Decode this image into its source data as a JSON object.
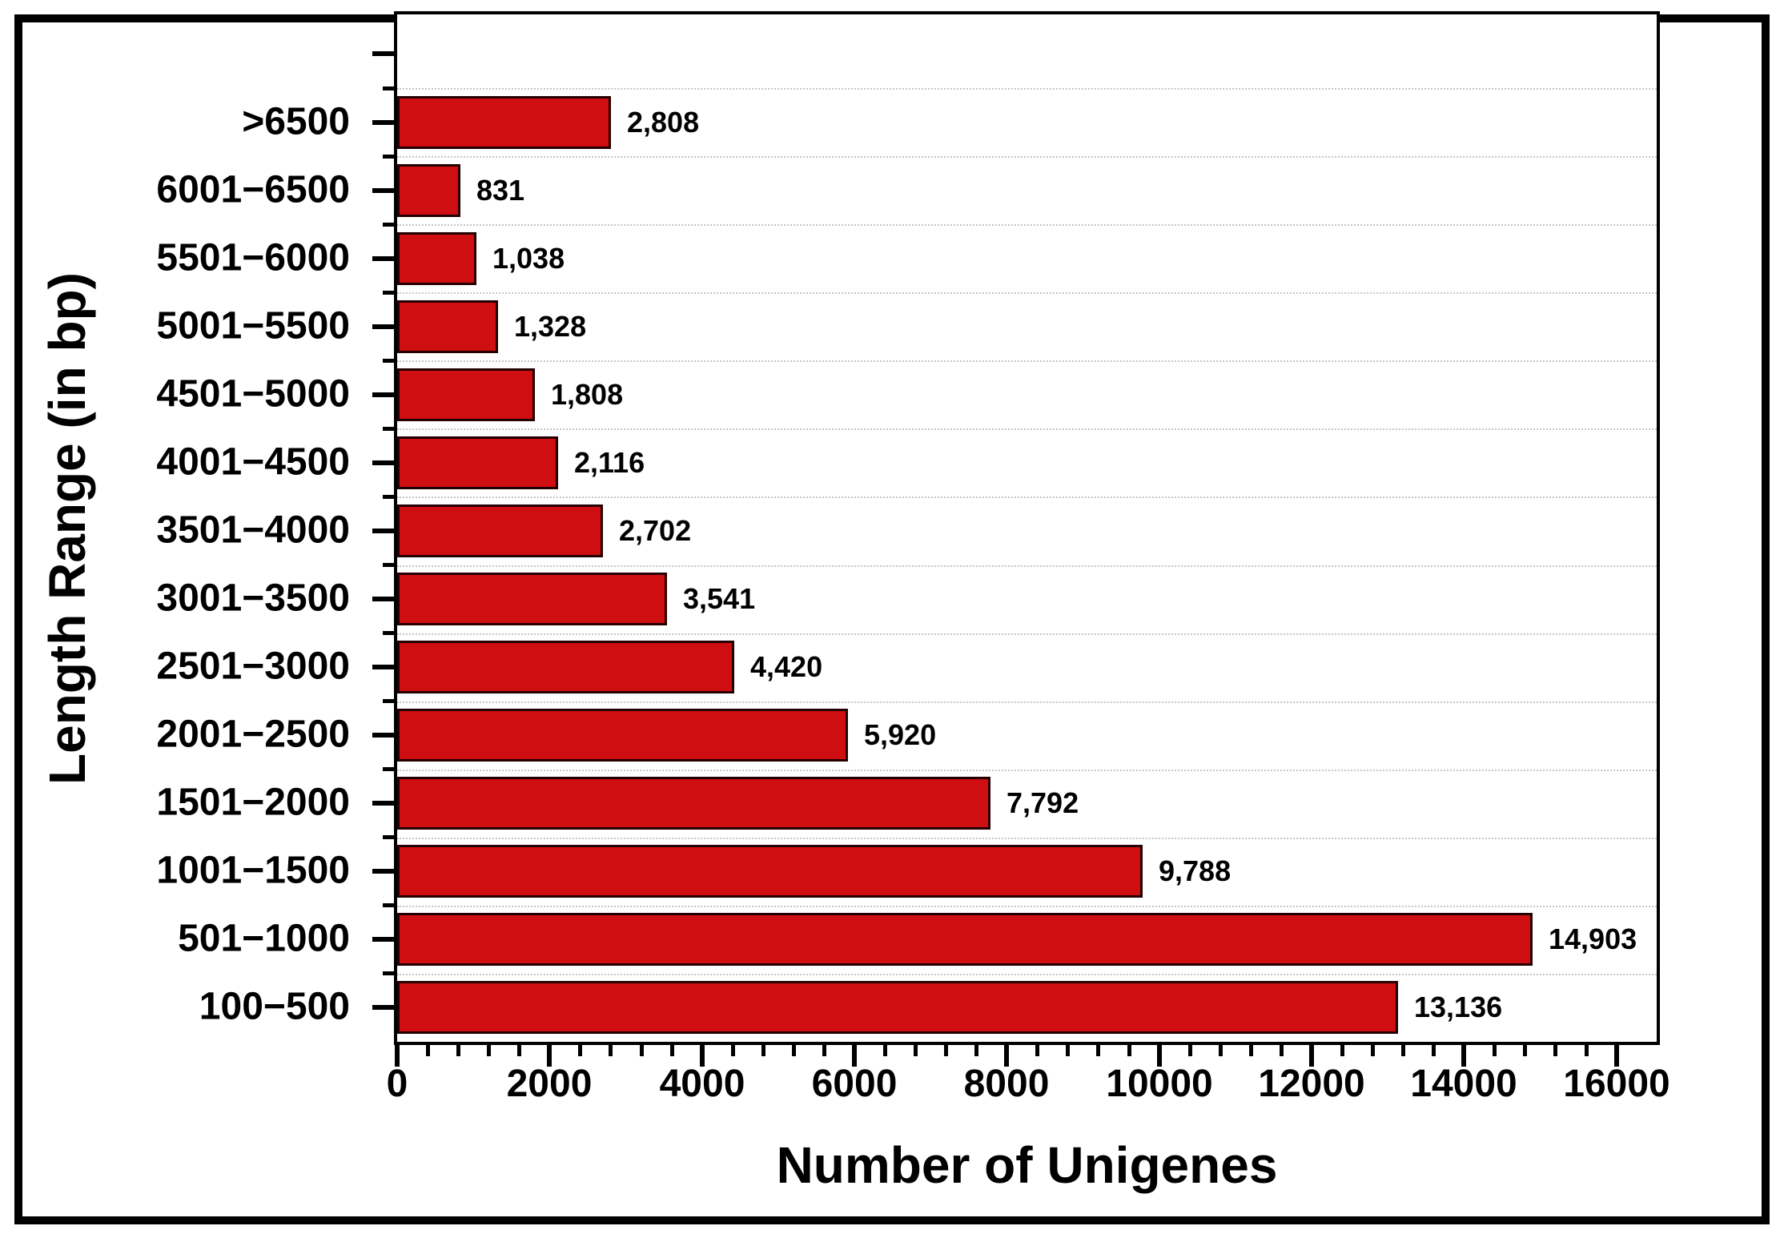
{
  "chart_data": {
    "type": "bar",
    "orientation": "horizontal",
    "title": "",
    "xlabel": "Number of Unigenes",
    "ylabel": "Length Range (in bp)",
    "categories_top_to_bottom": [
      ">6500",
      "6001−6500",
      "5501−6000",
      "5001−5500",
      "4501−5000",
      "4001−4500",
      "3501−4000",
      "3001−3500",
      "2501−3000",
      "2001−2500",
      "1501−2000",
      "1001−1500",
      "501−1000",
      "100−500"
    ],
    "values": [
      2808,
      831,
      1038,
      1328,
      1808,
      2116,
      2702,
      3541,
      4420,
      5920,
      7792,
      9788,
      14903,
      13136
    ],
    "value_labels": [
      "2,808",
      "831",
      "1,038",
      "1,328",
      "1,808",
      "2,116",
      "2,702",
      "3,541",
      "4,420",
      "5,920",
      "7,792",
      "9,788",
      "14,903",
      "13,136"
    ],
    "xlim": [
      0,
      16530
    ],
    "x_major_ticks": [
      0,
      2000,
      4000,
      6000,
      8000,
      10000,
      12000,
      14000,
      16000
    ],
    "x_tick_labels": [
      "0",
      "2000",
      "4000",
      "6000",
      "8000",
      "10000",
      "12000",
      "14000",
      "16000"
    ],
    "x_minor_step": 400,
    "grid": "dotted horizontal gridlines at category boundaries",
    "legend": "none",
    "bar_color": "#ce0e10",
    "bar_border_color": "#250000",
    "frame_color": "#000000",
    "gridline_color": "#c6c6c6"
  }
}
